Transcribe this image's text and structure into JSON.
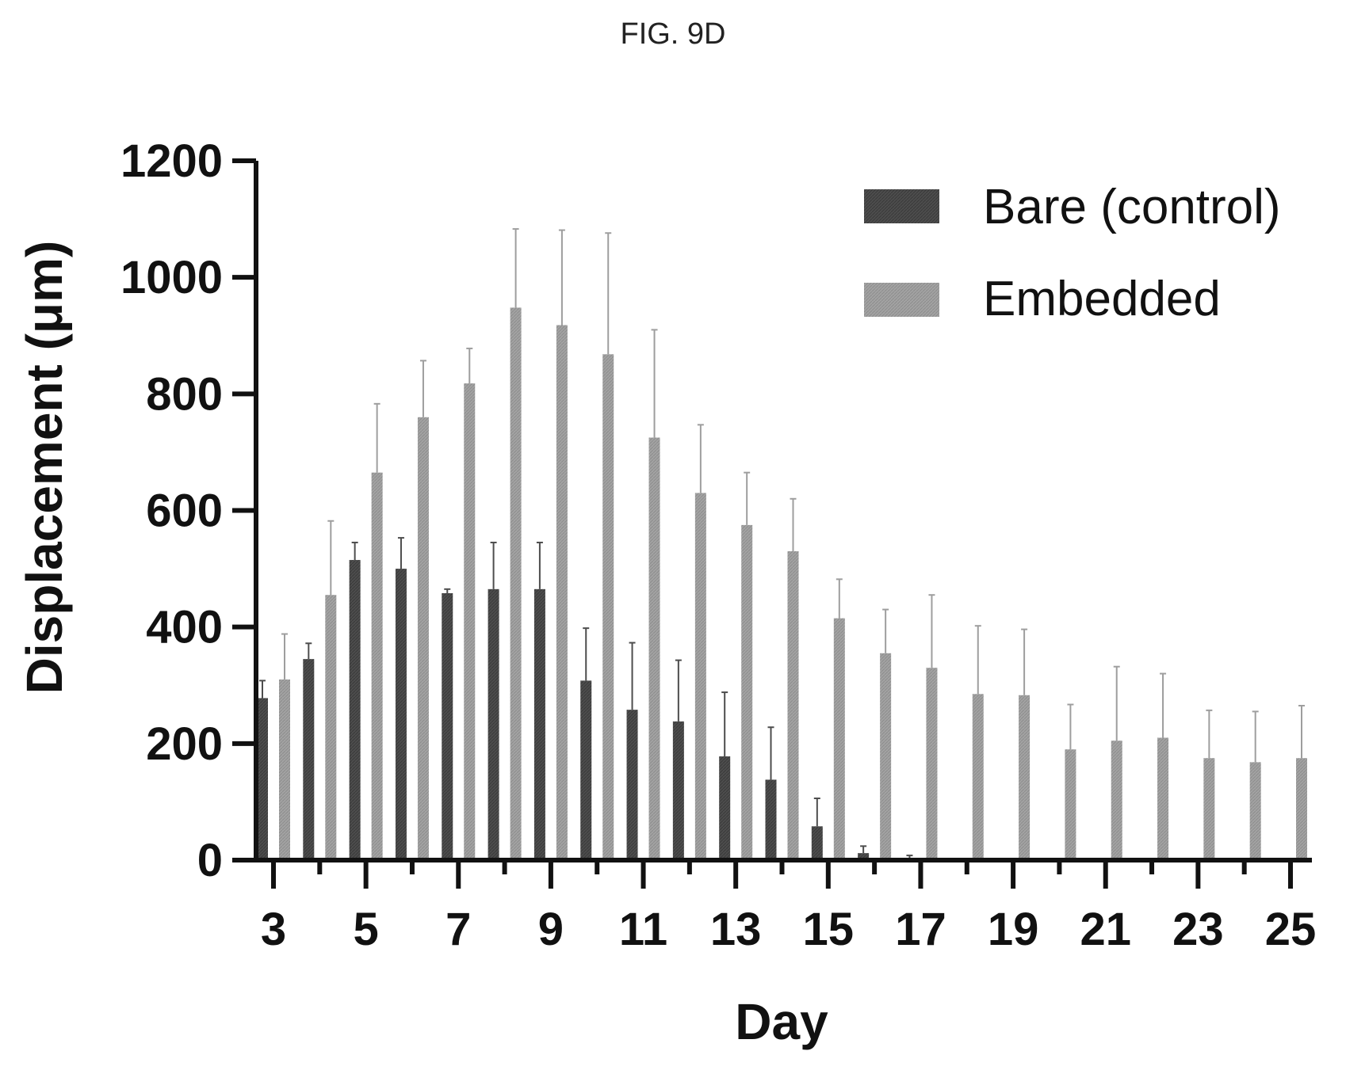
{
  "figure_label": "FIG. 9D",
  "colors": {
    "bare": "#4d4d4d",
    "embedded": "#9e9e9e",
    "axis": "#111111"
  },
  "chart_data": {
    "type": "bar",
    "title": "",
    "xlabel": "Day",
    "ylabel": "Displacement (μm)",
    "ylim": [
      0,
      1200
    ],
    "yticks": [
      0,
      200,
      400,
      600,
      800,
      1000,
      1200
    ],
    "x_tick_labels": [
      "3",
      "5",
      "7",
      "9",
      "11",
      "13",
      "15",
      "17",
      "19",
      "21",
      "23",
      "25"
    ],
    "categories": [
      3,
      4,
      5,
      6,
      7,
      8,
      9,
      10,
      11,
      12,
      13,
      14,
      15,
      16,
      17,
      18,
      19,
      20,
      21,
      22,
      23,
      24,
      25
    ],
    "legend": {
      "placement": "top-right"
    },
    "grid": false,
    "series": [
      {
        "name": "Bare (control)",
        "values": [
          278,
          345,
          515,
          500,
          458,
          465,
          465,
          308,
          258,
          238,
          178,
          138,
          58,
          12,
          3,
          0,
          0,
          0,
          0,
          0,
          0,
          0,
          0
        ],
        "errors": [
          30,
          27,
          30,
          53,
          7,
          80,
          80,
          90,
          115,
          105,
          110,
          90,
          48,
          12,
          5,
          0,
          0,
          0,
          0,
          0,
          0,
          0,
          0
        ]
      },
      {
        "name": "Embedded",
        "values": [
          310,
          455,
          665,
          760,
          818,
          948,
          918,
          868,
          725,
          630,
          575,
          530,
          415,
          355,
          330,
          285,
          283,
          190,
          205,
          210,
          175,
          168,
          175
        ],
        "errors": [
          78,
          127,
          118,
          97,
          60,
          135,
          163,
          208,
          185,
          117,
          90,
          90,
          67,
          75,
          125,
          117,
          113,
          77,
          127,
          110,
          82,
          87,
          90
        ]
      }
    ]
  }
}
